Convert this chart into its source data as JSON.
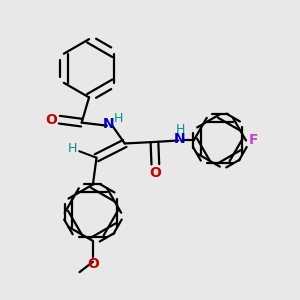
{
  "bg_color": "#e8e8e8",
  "bond_color": "#000000",
  "oxygen_color": "#cc0000",
  "nitrogen_color": "#0000cc",
  "fluorine_color": "#cc44cc",
  "hydrogen_color": "#009090",
  "line_width": 1.6,
  "dbo": 0.013,
  "xlim": [
    0,
    1
  ],
  "ylim": [
    0,
    1
  ]
}
